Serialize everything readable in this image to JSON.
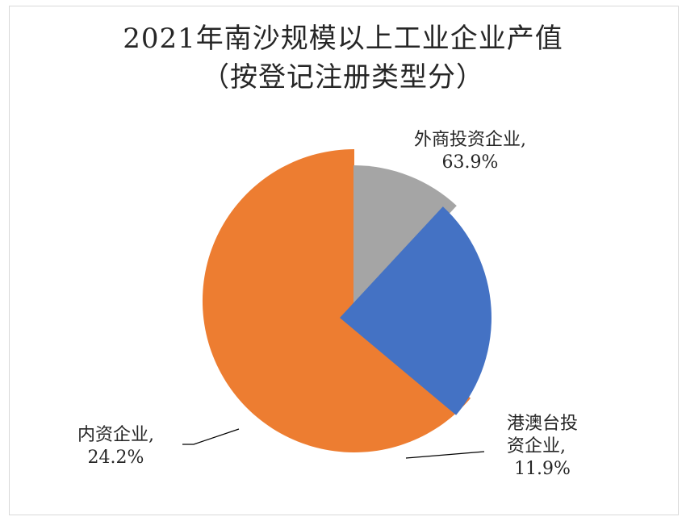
{
  "chart": {
    "title_line1": "2021年南沙规模以上工业企业产值",
    "title_line2": "（按登记注册类型分）"
  },
  "labels": {
    "foreign": {
      "name": "外商投资企业,",
      "value": "63.9%"
    },
    "hkmt": {
      "name_line1": "港澳台投",
      "name_line2": "资企业,",
      "value": "11.9%"
    },
    "domestic": {
      "name": "内资企业,",
      "value": "24.2%"
    }
  },
  "colors": {
    "foreign": "#ED7D31",
    "hkmt": "#A5A5A5",
    "domestic": "#4472C4",
    "border": "#D9D9D9",
    "text": "#262626"
  },
  "chart_data": {
    "type": "pie",
    "title": "2021年南沙规模以上工业企业产值（按登记注册类型分）",
    "categories": [
      "港澳台投资企业",
      "内资企业",
      "外商投资企业"
    ],
    "values": [
      11.9,
      24.2,
      63.9
    ],
    "unit": "%",
    "start_angle_deg": 0,
    "direction": "clockwise",
    "exploded": true,
    "legend": "none",
    "data_labels": [
      "港澳台投资企业, 11.9%",
      "内资企业, 24.2%",
      "外商投资企业, 63.9%"
    ]
  }
}
